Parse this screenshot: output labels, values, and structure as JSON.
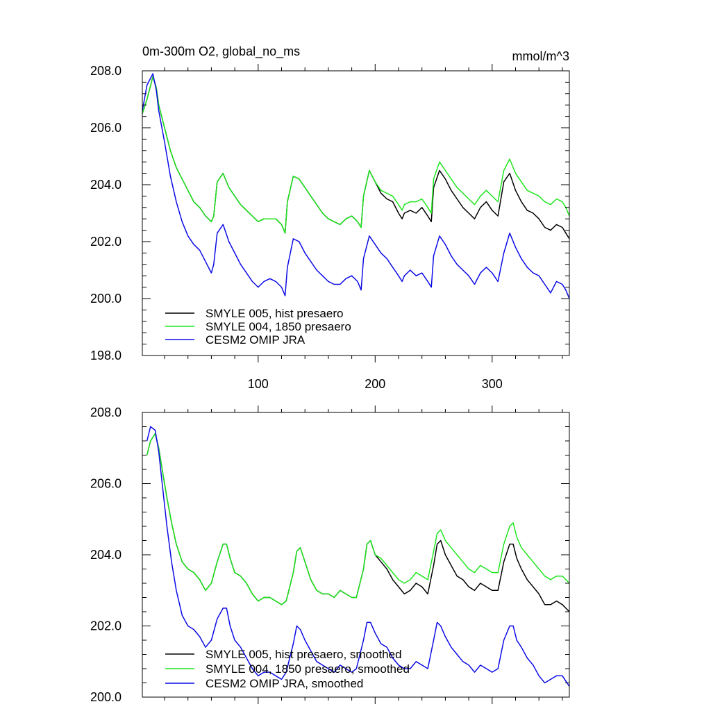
{
  "chart_data": [
    {
      "type": "line",
      "title": "0m-300m O2, global_no_ms",
      "units": "mmol/m^3",
      "xlim": [
        1,
        366
      ],
      "ylim": [
        198.0,
        208.0
      ],
      "y_ticks": [
        198.0,
        200.0,
        202.0,
        204.0,
        206.0,
        208.0
      ],
      "y_tick_labels": [
        "198.0",
        "200.0",
        "202.0",
        "204.0",
        "206.0",
        "208.0"
      ],
      "x_ticks": [
        100,
        200,
        300
      ],
      "x_tick_labels": [
        "100",
        "200",
        "300"
      ],
      "legend_position": "bottom-left",
      "series": [
        {
          "name": "SMYLE 005, hist presaero",
          "color": "#000000",
          "x": [
            1,
            5,
            10,
            13,
            15,
            20,
            25,
            30,
            35,
            40,
            45,
            50,
            55,
            60,
            62,
            65,
            70,
            75,
            80,
            85,
            90,
            95,
            100,
            105,
            110,
            115,
            120,
            123,
            125,
            130,
            135,
            140,
            145,
            150,
            155,
            160,
            165,
            170,
            175,
            180,
            185,
            188,
            190,
            195,
            200,
            205,
            210,
            215,
            220,
            223,
            225,
            230,
            235,
            240,
            245,
            248,
            250,
            255,
            260,
            265,
            270,
            275,
            280,
            285,
            290,
            295,
            300,
            305,
            310,
            315,
            320,
            325,
            330,
            335,
            340,
            345,
            350,
            355,
            360,
            363,
            366
          ],
          "y": [
            206.5,
            207.0,
            207.8,
            207.4,
            206.8,
            206.0,
            205.2,
            204.6,
            204.2,
            203.8,
            203.4,
            203.2,
            202.9,
            202.7,
            202.9,
            204.1,
            204.4,
            203.9,
            203.6,
            203.3,
            203.1,
            202.9,
            202.7,
            202.8,
            202.8,
            202.8,
            202.6,
            202.3,
            203.4,
            204.3,
            204.2,
            203.9,
            203.6,
            203.3,
            203.0,
            202.8,
            202.7,
            202.6,
            202.8,
            202.9,
            202.7,
            202.5,
            203.6,
            204.5,
            204.1,
            203.7,
            203.5,
            203.4,
            203.0,
            202.8,
            203.0,
            203.1,
            203.0,
            203.2,
            202.9,
            202.7,
            203.9,
            204.5,
            204.2,
            203.8,
            203.5,
            203.2,
            203.0,
            202.8,
            203.2,
            203.4,
            203.1,
            202.9,
            204.1,
            204.4,
            203.8,
            203.4,
            203.1,
            203.0,
            202.8,
            202.5,
            202.4,
            202.6,
            202.5,
            202.3,
            202.1
          ]
        },
        {
          "name": "SMYLE 004, 1850 presaero",
          "color": "#1ee61e",
          "x": [
            1,
            5,
            10,
            13,
            15,
            20,
            25,
            30,
            35,
            40,
            45,
            50,
            55,
            60,
            62,
            65,
            70,
            75,
            80,
            85,
            90,
            95,
            100,
            105,
            110,
            115,
            120,
            123,
            125,
            130,
            135,
            140,
            145,
            150,
            155,
            160,
            165,
            170,
            175,
            180,
            185,
            188,
            190,
            195,
            200,
            205,
            210,
            215,
            220,
            223,
            225,
            230,
            235,
            240,
            245,
            248,
            250,
            255,
            260,
            265,
            270,
            275,
            280,
            285,
            290,
            295,
            300,
            305,
            310,
            315,
            320,
            325,
            330,
            335,
            340,
            345,
            350,
            355,
            360,
            363,
            366
          ],
          "y": [
            206.5,
            207.0,
            207.8,
            207.4,
            206.8,
            206.0,
            205.2,
            204.6,
            204.2,
            203.8,
            203.4,
            203.2,
            202.9,
            202.7,
            202.9,
            204.1,
            204.4,
            203.9,
            203.6,
            203.3,
            203.1,
            202.9,
            202.7,
            202.8,
            202.8,
            202.8,
            202.6,
            202.3,
            203.4,
            204.3,
            204.2,
            203.9,
            203.6,
            203.3,
            203.0,
            202.8,
            202.7,
            202.6,
            202.8,
            202.9,
            202.7,
            202.5,
            203.6,
            204.5,
            204.1,
            203.8,
            203.7,
            203.6,
            203.3,
            203.1,
            203.3,
            203.4,
            203.4,
            203.5,
            203.2,
            203.0,
            204.2,
            204.8,
            204.5,
            204.2,
            203.9,
            203.7,
            203.5,
            203.3,
            203.6,
            203.8,
            203.6,
            203.4,
            204.5,
            204.9,
            204.4,
            204.1,
            203.8,
            203.7,
            203.6,
            203.4,
            203.3,
            203.5,
            203.4,
            203.2,
            202.9
          ]
        },
        {
          "name": "CESM2 OMIP JRA",
          "color": "#0a0ae6",
          "x": [
            1,
            5,
            10,
            13,
            15,
            20,
            25,
            30,
            35,
            40,
            45,
            50,
            55,
            60,
            62,
            65,
            70,
            75,
            80,
            85,
            90,
            95,
            100,
            105,
            110,
            115,
            120,
            123,
            125,
            130,
            135,
            140,
            145,
            150,
            155,
            160,
            165,
            170,
            175,
            180,
            185,
            188,
            190,
            195,
            200,
            205,
            210,
            215,
            220,
            223,
            225,
            230,
            235,
            240,
            245,
            248,
            250,
            255,
            260,
            265,
            270,
            275,
            280,
            285,
            290,
            295,
            300,
            305,
            310,
            315,
            320,
            325,
            330,
            335,
            340,
            345,
            350,
            355,
            360,
            363,
            366
          ],
          "y": [
            206.6,
            207.5,
            207.9,
            207.3,
            206.6,
            205.5,
            204.3,
            203.4,
            202.7,
            202.2,
            201.9,
            201.7,
            201.3,
            200.9,
            201.2,
            202.3,
            202.6,
            202.0,
            201.6,
            201.2,
            200.9,
            200.6,
            200.4,
            200.6,
            200.7,
            200.6,
            200.4,
            200.1,
            201.1,
            202.1,
            202.0,
            201.6,
            201.3,
            201.0,
            200.8,
            200.6,
            200.5,
            200.5,
            200.7,
            200.8,
            200.6,
            200.3,
            201.4,
            202.2,
            201.9,
            201.6,
            201.4,
            201.1,
            200.8,
            200.6,
            200.8,
            201.0,
            200.8,
            200.9,
            200.6,
            200.4,
            201.5,
            202.2,
            201.9,
            201.5,
            201.2,
            201.0,
            200.8,
            200.5,
            200.9,
            201.1,
            200.9,
            200.6,
            201.6,
            202.3,
            201.8,
            201.4,
            201.1,
            200.9,
            200.8,
            200.5,
            200.2,
            200.6,
            200.5,
            200.3,
            200.0
          ]
        }
      ]
    },
    {
      "type": "line",
      "title": "",
      "units": "",
      "xlim": [
        1,
        366
      ],
      "ylim": [
        200.0,
        208.0
      ],
      "y_ticks": [
        200.0,
        202.0,
        204.0,
        206.0,
        208.0
      ],
      "y_tick_labels": [
        "200.0",
        "202.0",
        "204.0",
        "206.0",
        "208.0"
      ],
      "x_ticks": [
        100,
        200,
        300
      ],
      "x_tick_labels": [],
      "legend_position": "bottom-left",
      "series": [
        {
          "name": "SMYLE 005, hist presaero, smoothed",
          "color": "#000000",
          "x": [
            5,
            8,
            12,
            15,
            18,
            22,
            26,
            30,
            35,
            40,
            45,
            50,
            55,
            60,
            65,
            70,
            73,
            76,
            80,
            85,
            90,
            95,
            100,
            105,
            110,
            115,
            120,
            124,
            130,
            133,
            136,
            140,
            145,
            150,
            155,
            160,
            165,
            170,
            175,
            180,
            184,
            190,
            193,
            196,
            200,
            205,
            210,
            215,
            220,
            225,
            230,
            235,
            240,
            245,
            250,
            253,
            256,
            260,
            265,
            270,
            275,
            280,
            285,
            290,
            295,
            300,
            305,
            310,
            315,
            318,
            321,
            325,
            330,
            335,
            340,
            345,
            350,
            355,
            360,
            366
          ],
          "y": [
            206.8,
            207.2,
            207.4,
            207.0,
            206.4,
            205.6,
            204.9,
            204.3,
            203.8,
            203.6,
            203.5,
            203.3,
            203.0,
            203.2,
            203.8,
            204.3,
            204.3,
            203.9,
            203.5,
            203.4,
            203.2,
            202.9,
            202.7,
            202.8,
            202.8,
            202.7,
            202.6,
            202.7,
            203.5,
            204.1,
            204.2,
            203.8,
            203.3,
            203.0,
            202.9,
            202.9,
            202.8,
            203.0,
            202.9,
            202.8,
            202.8,
            203.6,
            204.3,
            204.4,
            204.0,
            203.8,
            203.6,
            203.3,
            203.1,
            202.9,
            203.0,
            203.2,
            203.1,
            202.9,
            203.7,
            204.3,
            204.4,
            204.0,
            203.7,
            203.4,
            203.3,
            203.1,
            203.0,
            203.2,
            203.1,
            203.0,
            203.0,
            203.8,
            204.3,
            204.3,
            203.9,
            203.6,
            203.3,
            203.1,
            202.9,
            202.6,
            202.6,
            202.7,
            202.6,
            202.4
          ]
        },
        {
          "name": "SMYLE 004, 1850 presaero, smoothed",
          "color": "#1ee61e",
          "x": [
            5,
            8,
            12,
            15,
            18,
            22,
            26,
            30,
            35,
            40,
            45,
            50,
            55,
            60,
            65,
            70,
            73,
            76,
            80,
            85,
            90,
            95,
            100,
            105,
            110,
            115,
            120,
            124,
            130,
            133,
            136,
            140,
            145,
            150,
            155,
            160,
            165,
            170,
            175,
            180,
            184,
            190,
            193,
            196,
            200,
            205,
            210,
            215,
            220,
            225,
            230,
            235,
            240,
            245,
            250,
            253,
            256,
            260,
            265,
            270,
            275,
            280,
            285,
            290,
            295,
            300,
            305,
            310,
            315,
            318,
            321,
            325,
            330,
            335,
            340,
            345,
            350,
            355,
            360,
            366
          ],
          "y": [
            206.8,
            207.2,
            207.4,
            207.0,
            206.4,
            205.6,
            204.9,
            204.3,
            203.8,
            203.6,
            203.5,
            203.3,
            203.0,
            203.2,
            203.8,
            204.3,
            204.3,
            203.9,
            203.5,
            203.4,
            203.2,
            202.9,
            202.7,
            202.8,
            202.8,
            202.7,
            202.6,
            202.7,
            203.5,
            204.1,
            204.2,
            203.8,
            203.3,
            203.0,
            202.9,
            202.9,
            202.8,
            203.0,
            202.9,
            202.8,
            202.8,
            203.6,
            204.3,
            204.4,
            204.0,
            203.9,
            203.7,
            203.5,
            203.3,
            203.2,
            203.3,
            203.5,
            203.4,
            203.3,
            204.1,
            204.6,
            204.7,
            204.4,
            204.2,
            204.0,
            203.8,
            203.6,
            203.5,
            203.7,
            203.6,
            203.5,
            203.5,
            204.3,
            204.8,
            204.9,
            204.5,
            204.2,
            204.0,
            203.8,
            203.6,
            203.4,
            203.3,
            203.4,
            203.4,
            203.2
          ]
        },
        {
          "name": "CESM2 OMIP JRA, smoothed",
          "color": "#0a0ae6",
          "x": [
            5,
            8,
            12,
            15,
            18,
            22,
            26,
            30,
            35,
            40,
            45,
            50,
            55,
            60,
            65,
            70,
            73,
            76,
            80,
            85,
            90,
            95,
            100,
            105,
            110,
            115,
            120,
            124,
            130,
            133,
            136,
            140,
            145,
            150,
            155,
            160,
            165,
            170,
            175,
            180,
            184,
            190,
            193,
            196,
            200,
            205,
            210,
            215,
            220,
            225,
            230,
            235,
            240,
            245,
            250,
            253,
            256,
            260,
            265,
            270,
            275,
            280,
            285,
            290,
            295,
            300,
            305,
            310,
            315,
            318,
            321,
            325,
            330,
            335,
            340,
            345,
            350,
            355,
            360,
            366
          ],
          "y": [
            207.2,
            207.6,
            207.5,
            206.9,
            206.0,
            204.8,
            203.8,
            203.0,
            202.3,
            202.0,
            201.9,
            201.7,
            201.4,
            201.6,
            202.2,
            202.5,
            202.5,
            202.0,
            201.6,
            201.4,
            201.1,
            200.8,
            200.6,
            200.7,
            200.7,
            200.6,
            200.5,
            200.7,
            201.5,
            202.0,
            201.9,
            201.6,
            201.3,
            201.0,
            200.9,
            200.8,
            200.7,
            200.9,
            200.8,
            200.7,
            200.8,
            201.6,
            202.1,
            202.1,
            201.8,
            201.5,
            201.4,
            201.1,
            200.9,
            200.8,
            200.8,
            201.0,
            200.9,
            200.8,
            201.6,
            202.1,
            202.0,
            201.7,
            201.4,
            201.2,
            201.0,
            200.9,
            200.7,
            200.9,
            200.8,
            200.7,
            200.8,
            201.6,
            202.0,
            202.0,
            201.6,
            201.4,
            201.1,
            200.9,
            200.6,
            200.4,
            200.5,
            200.6,
            200.6,
            200.3
          ]
        }
      ]
    }
  ]
}
